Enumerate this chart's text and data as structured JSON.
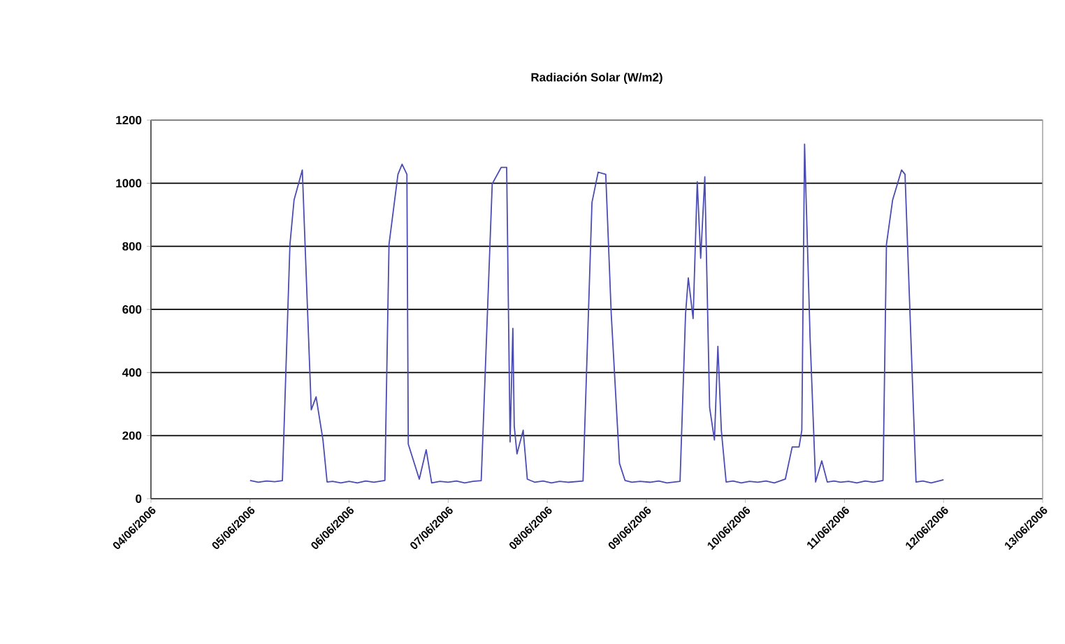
{
  "chart_data": {
    "type": "line",
    "title": "Radiación Solar (W/m2)",
    "color": "#4b4bb4",
    "grid": "y",
    "xlim": [
      "2006-06-04",
      "2006-06-13"
    ],
    "xticks": [
      {
        "value": "2006-06-04",
        "label": "04/06/2006"
      },
      {
        "value": "2006-06-05",
        "label": "05/06/2006"
      },
      {
        "value": "2006-06-06",
        "label": "06/06/2006"
      },
      {
        "value": "2006-06-07",
        "label": "07/06/2006"
      },
      {
        "value": "2006-06-08",
        "label": "08/06/2006"
      },
      {
        "value": "2006-06-09",
        "label": "09/06/2006"
      },
      {
        "value": "2006-06-10",
        "label": "10/06/2006"
      },
      {
        "value": "2006-06-11",
        "label": "11/06/2006"
      },
      {
        "value": "2006-06-12",
        "label": "12/06/2006"
      },
      {
        "value": "2006-06-13",
        "label": "13/06/2006"
      }
    ],
    "ylim": [
      0,
      1200
    ],
    "yticks": [
      0,
      200,
      400,
      600,
      800,
      1000,
      1200
    ],
    "x": [
      "2006-06-05T00:00",
      "2006-06-05T02:00",
      "2006-06-05T04:00",
      "2006-06-05T06:00",
      "2006-06-05T07:50",
      "2006-06-05T09:40",
      "2006-06-05T10:40",
      "2006-06-05T12:40",
      "2006-06-05T13:20",
      "2006-06-05T14:50",
      "2006-06-05T16:00",
      "2006-06-05T17:40",
      "2006-06-05T18:40",
      "2006-06-05T20:00",
      "2006-06-05T22:00",
      "2006-06-06T00:00",
      "2006-06-06T02:00",
      "2006-06-06T04:00",
      "2006-06-06T06:00",
      "2006-06-06T08:40",
      "2006-06-06T09:40",
      "2006-06-06T11:50",
      "2006-06-06T12:50",
      "2006-06-06T14:00",
      "2006-06-06T14:20",
      "2006-06-06T17:00",
      "2006-06-06T18:40",
      "2006-06-06T20:00",
      "2006-06-06T22:00",
      "2006-06-07T00:00",
      "2006-06-07T02:00",
      "2006-06-07T04:00",
      "2006-06-07T06:00",
      "2006-06-07T08:00",
      "2006-06-07T10:40",
      "2006-06-07T12:50",
      "2006-06-07T14:10",
      "2006-06-07T15:00",
      "2006-06-07T15:40",
      "2006-06-07T16:00",
      "2006-06-07T16:40",
      "2006-06-07T18:10",
      "2006-06-07T19:10",
      "2006-06-07T21:00",
      "2006-06-07T23:00",
      "2006-06-08T01:00",
      "2006-06-08T03:00",
      "2006-06-08T05:00",
      "2006-06-08T08:40",
      "2006-06-08T10:50",
      "2006-06-08T12:20",
      "2006-06-08T14:10",
      "2006-06-08T15:30",
      "2006-06-08T17:30",
      "2006-06-08T18:50",
      "2006-06-08T20:30",
      "2006-06-08T22:30",
      "2006-06-09T01:00",
      "2006-06-09T03:00",
      "2006-06-09T05:00",
      "2006-06-09T08:10",
      "2006-06-09T09:30",
      "2006-06-09T10:10",
      "2006-06-09T11:20",
      "2006-06-09T12:20",
      "2006-06-09T13:10",
      "2006-06-09T14:10",
      "2006-06-09T15:20",
      "2006-06-09T16:30",
      "2006-06-09T17:20",
      "2006-06-09T18:10",
      "2006-06-09T19:20",
      "2006-06-09T21:00",
      "2006-06-09T23:00",
      "2006-06-10T01:00",
      "2006-06-10T03:00",
      "2006-06-10T05:00",
      "2006-06-10T07:00",
      "2006-06-10T09:40",
      "2006-06-10T11:20",
      "2006-06-10T13:00",
      "2006-06-10T13:40",
      "2006-06-10T14:20",
      "2006-06-10T15:40",
      "2006-06-10T17:00",
      "2006-06-10T18:30",
      "2006-06-10T19:50",
      "2006-06-10T21:30",
      "2006-06-10T23:00",
      "2006-06-11T01:00",
      "2006-06-11T03:00",
      "2006-06-11T05:00",
      "2006-06-11T07:00",
      "2006-06-11T09:20",
      "2006-06-11T10:10",
      "2006-06-11T11:40",
      "2006-06-11T13:50",
      "2006-06-11T14:40",
      "2006-06-11T17:20",
      "2006-06-11T19:00",
      "2006-06-11T21:00",
      "2006-06-11T22:30",
      "2006-06-12T00:00"
    ],
    "values": [
      58,
      52,
      56,
      54,
      57,
      806,
      947,
      1042,
      806,
      282,
      323,
      186,
      53,
      55,
      50,
      55,
      50,
      56,
      52,
      58,
      806,
      1028,
      1060,
      1028,
      173,
      62,
      155,
      50,
      55,
      52,
      56,
      50,
      55,
      57,
      998,
      1050,
      1050,
      180,
      540,
      230,
      142,
      217,
      62,
      52,
      56,
      50,
      55,
      52,
      56,
      939,
      1035,
      1028,
      585,
      112,
      58,
      52,
      55,
      52,
      56,
      50,
      55,
      585,
      700,
      571,
      1005,
      762,
      1020,
      289,
      186,
      483,
      217,
      53,
      56,
      50,
      55,
      52,
      56,
      50,
      62,
      164,
      164,
      217,
      1124,
      511,
      53,
      120,
      53,
      56,
      52,
      55,
      50,
      56,
      52,
      58,
      806,
      947,
      1042,
      1028,
      53,
      56,
      50,
      55,
      60
    ]
  }
}
